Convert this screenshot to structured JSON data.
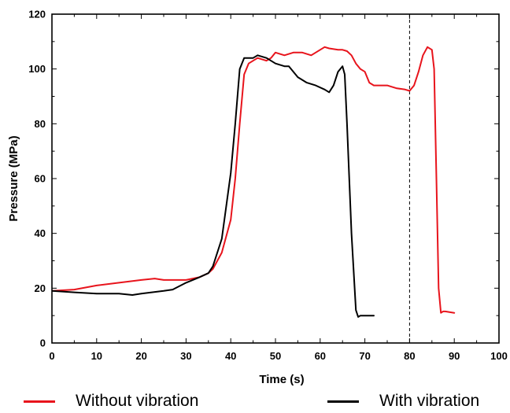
{
  "chart_data": {
    "type": "line",
    "xlabel": "Time (s)",
    "ylabel": "Pressure (MPa)",
    "xlim": [
      0,
      100
    ],
    "ylim": [
      0,
      120
    ],
    "xticks": [
      0,
      10,
      20,
      30,
      40,
      50,
      60,
      70,
      80,
      90,
      100
    ],
    "yticks": [
      0,
      20,
      40,
      60,
      80,
      100,
      120
    ],
    "grid": false,
    "legend_position": "bottom",
    "annotations": [
      {
        "type": "vertical-dashed-line",
        "x": 80
      }
    ],
    "series": [
      {
        "name": "Without vibration",
        "color": "#e8141c",
        "x": [
          0,
          5,
          10,
          15,
          20,
          23,
          25,
          30,
          33,
          35,
          36,
          38,
          40,
          41,
          42,
          43,
          44,
          46,
          48,
          49,
          50,
          52,
          54,
          56,
          58,
          60,
          61,
          62,
          64,
          65,
          66,
          67,
          68,
          69,
          70,
          71,
          72,
          73,
          75,
          77,
          79,
          80,
          81,
          82,
          83,
          84,
          85,
          85.5,
          86,
          86.5,
          87,
          87.5,
          88,
          90
        ],
        "y": [
          19,
          19.5,
          21,
          22,
          23,
          23.5,
          23,
          23,
          24,
          25.5,
          27,
          33,
          45,
          60,
          80,
          98,
          102,
          104,
          103,
          104,
          106,
          105,
          106,
          106,
          105,
          107,
          108,
          107.5,
          107,
          107,
          106.5,
          105,
          102,
          100,
          99,
          95,
          94,
          94,
          94,
          93,
          92.5,
          92,
          94,
          99,
          105,
          108,
          107,
          100,
          60,
          20,
          11,
          11.5,
          11.5,
          11
        ]
      },
      {
        "name": "With vibration",
        "color": "#000000",
        "x": [
          0,
          5,
          10,
          15,
          18,
          20,
          25,
          27,
          30,
          33,
          35,
          36,
          38,
          40,
          41,
          42,
          43,
          44,
          45,
          46,
          48,
          50,
          52,
          53,
          55,
          57,
          59,
          61,
          62,
          63,
          64,
          65,
          65.5,
          66,
          67,
          68,
          68.5,
          69,
          70,
          72
        ],
        "y": [
          19,
          18.5,
          18,
          18,
          17.5,
          18,
          19,
          19.5,
          22,
          24,
          25.5,
          28,
          38,
          62,
          80,
          100,
          104,
          104,
          104,
          105,
          104,
          102,
          101,
          101,
          97,
          95,
          94,
          92.5,
          91.5,
          94,
          99,
          101,
          98,
          80,
          40,
          12,
          9.5,
          10,
          10,
          10
        ]
      }
    ]
  }
}
